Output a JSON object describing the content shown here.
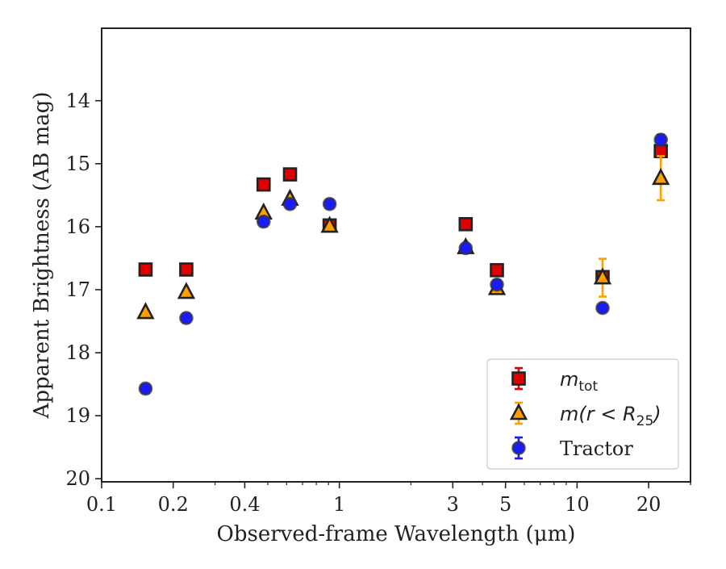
{
  "chart_data": {
    "type": "scatter",
    "xlabel": "Observed-frame Wavelength (μm)",
    "ylabel": "Apparent Brightness (AB mag)",
    "xscale": "log",
    "yinverted": true,
    "xlim": [
      0.1,
      30
    ],
    "ylim": [
      20.05,
      12.85
    ],
    "xticks": [
      0.1,
      0.2,
      0.4,
      1,
      3,
      5,
      10,
      20
    ],
    "xtick_labels": [
      "0.1",
      "0.2",
      "0.4",
      "1",
      "3",
      "5",
      "10",
      "20"
    ],
    "yticks": [
      14,
      15,
      16,
      17,
      18,
      19,
      20
    ],
    "ytick_labels": [
      "14",
      "15",
      "16",
      "17",
      "18",
      "19",
      "20"
    ],
    "grid": false,
    "legend_position": "bottom-right",
    "series": [
      {
        "name": "m_tot",
        "legend_main": "m",
        "legend_sub": "tot",
        "marker": "square",
        "color": "#e00000",
        "x": [
          0.153,
          0.227,
          0.48,
          0.62,
          0.91,
          3.4,
          4.6,
          12.8,
          22.5
        ],
        "y": [
          16.68,
          16.68,
          15.33,
          15.17,
          15.98,
          15.96,
          16.69,
          16.8,
          14.8
        ],
        "yerr": [
          0.02,
          0.02,
          0.02,
          0.02,
          0.02,
          0.02,
          0.02,
          0.03,
          0.05
        ]
      },
      {
        "name": "m(r < R25)",
        "legend_main": "m(r < R",
        "legend_sub": "25",
        "legend_tail": ")",
        "marker": "triangle",
        "color": "#ff9f00",
        "x": [
          0.153,
          0.227,
          0.48,
          0.62,
          0.91,
          3.4,
          4.6,
          12.8,
          22.5
        ],
        "y": [
          17.36,
          17.04,
          15.78,
          15.56,
          15.99,
          16.33,
          16.98,
          16.81,
          15.23
        ],
        "yerr": [
          0.02,
          0.02,
          0.02,
          0.02,
          0.02,
          0.02,
          0.02,
          0.3,
          0.35
        ]
      },
      {
        "name": "Tractor",
        "legend_main": "Tractor",
        "marker": "circle",
        "color": "#1a1aff",
        "x": [
          0.153,
          0.227,
          0.48,
          0.62,
          0.91,
          3.4,
          4.6,
          12.8,
          22.5
        ],
        "y": [
          18.57,
          17.45,
          15.92,
          15.64,
          15.64,
          16.34,
          16.92,
          17.29,
          14.62
        ],
        "yerr": [
          0.07,
          0.07,
          0.07,
          0.07,
          0.07,
          0.05,
          0.07,
          0.05,
          0.08
        ]
      }
    ]
  }
}
